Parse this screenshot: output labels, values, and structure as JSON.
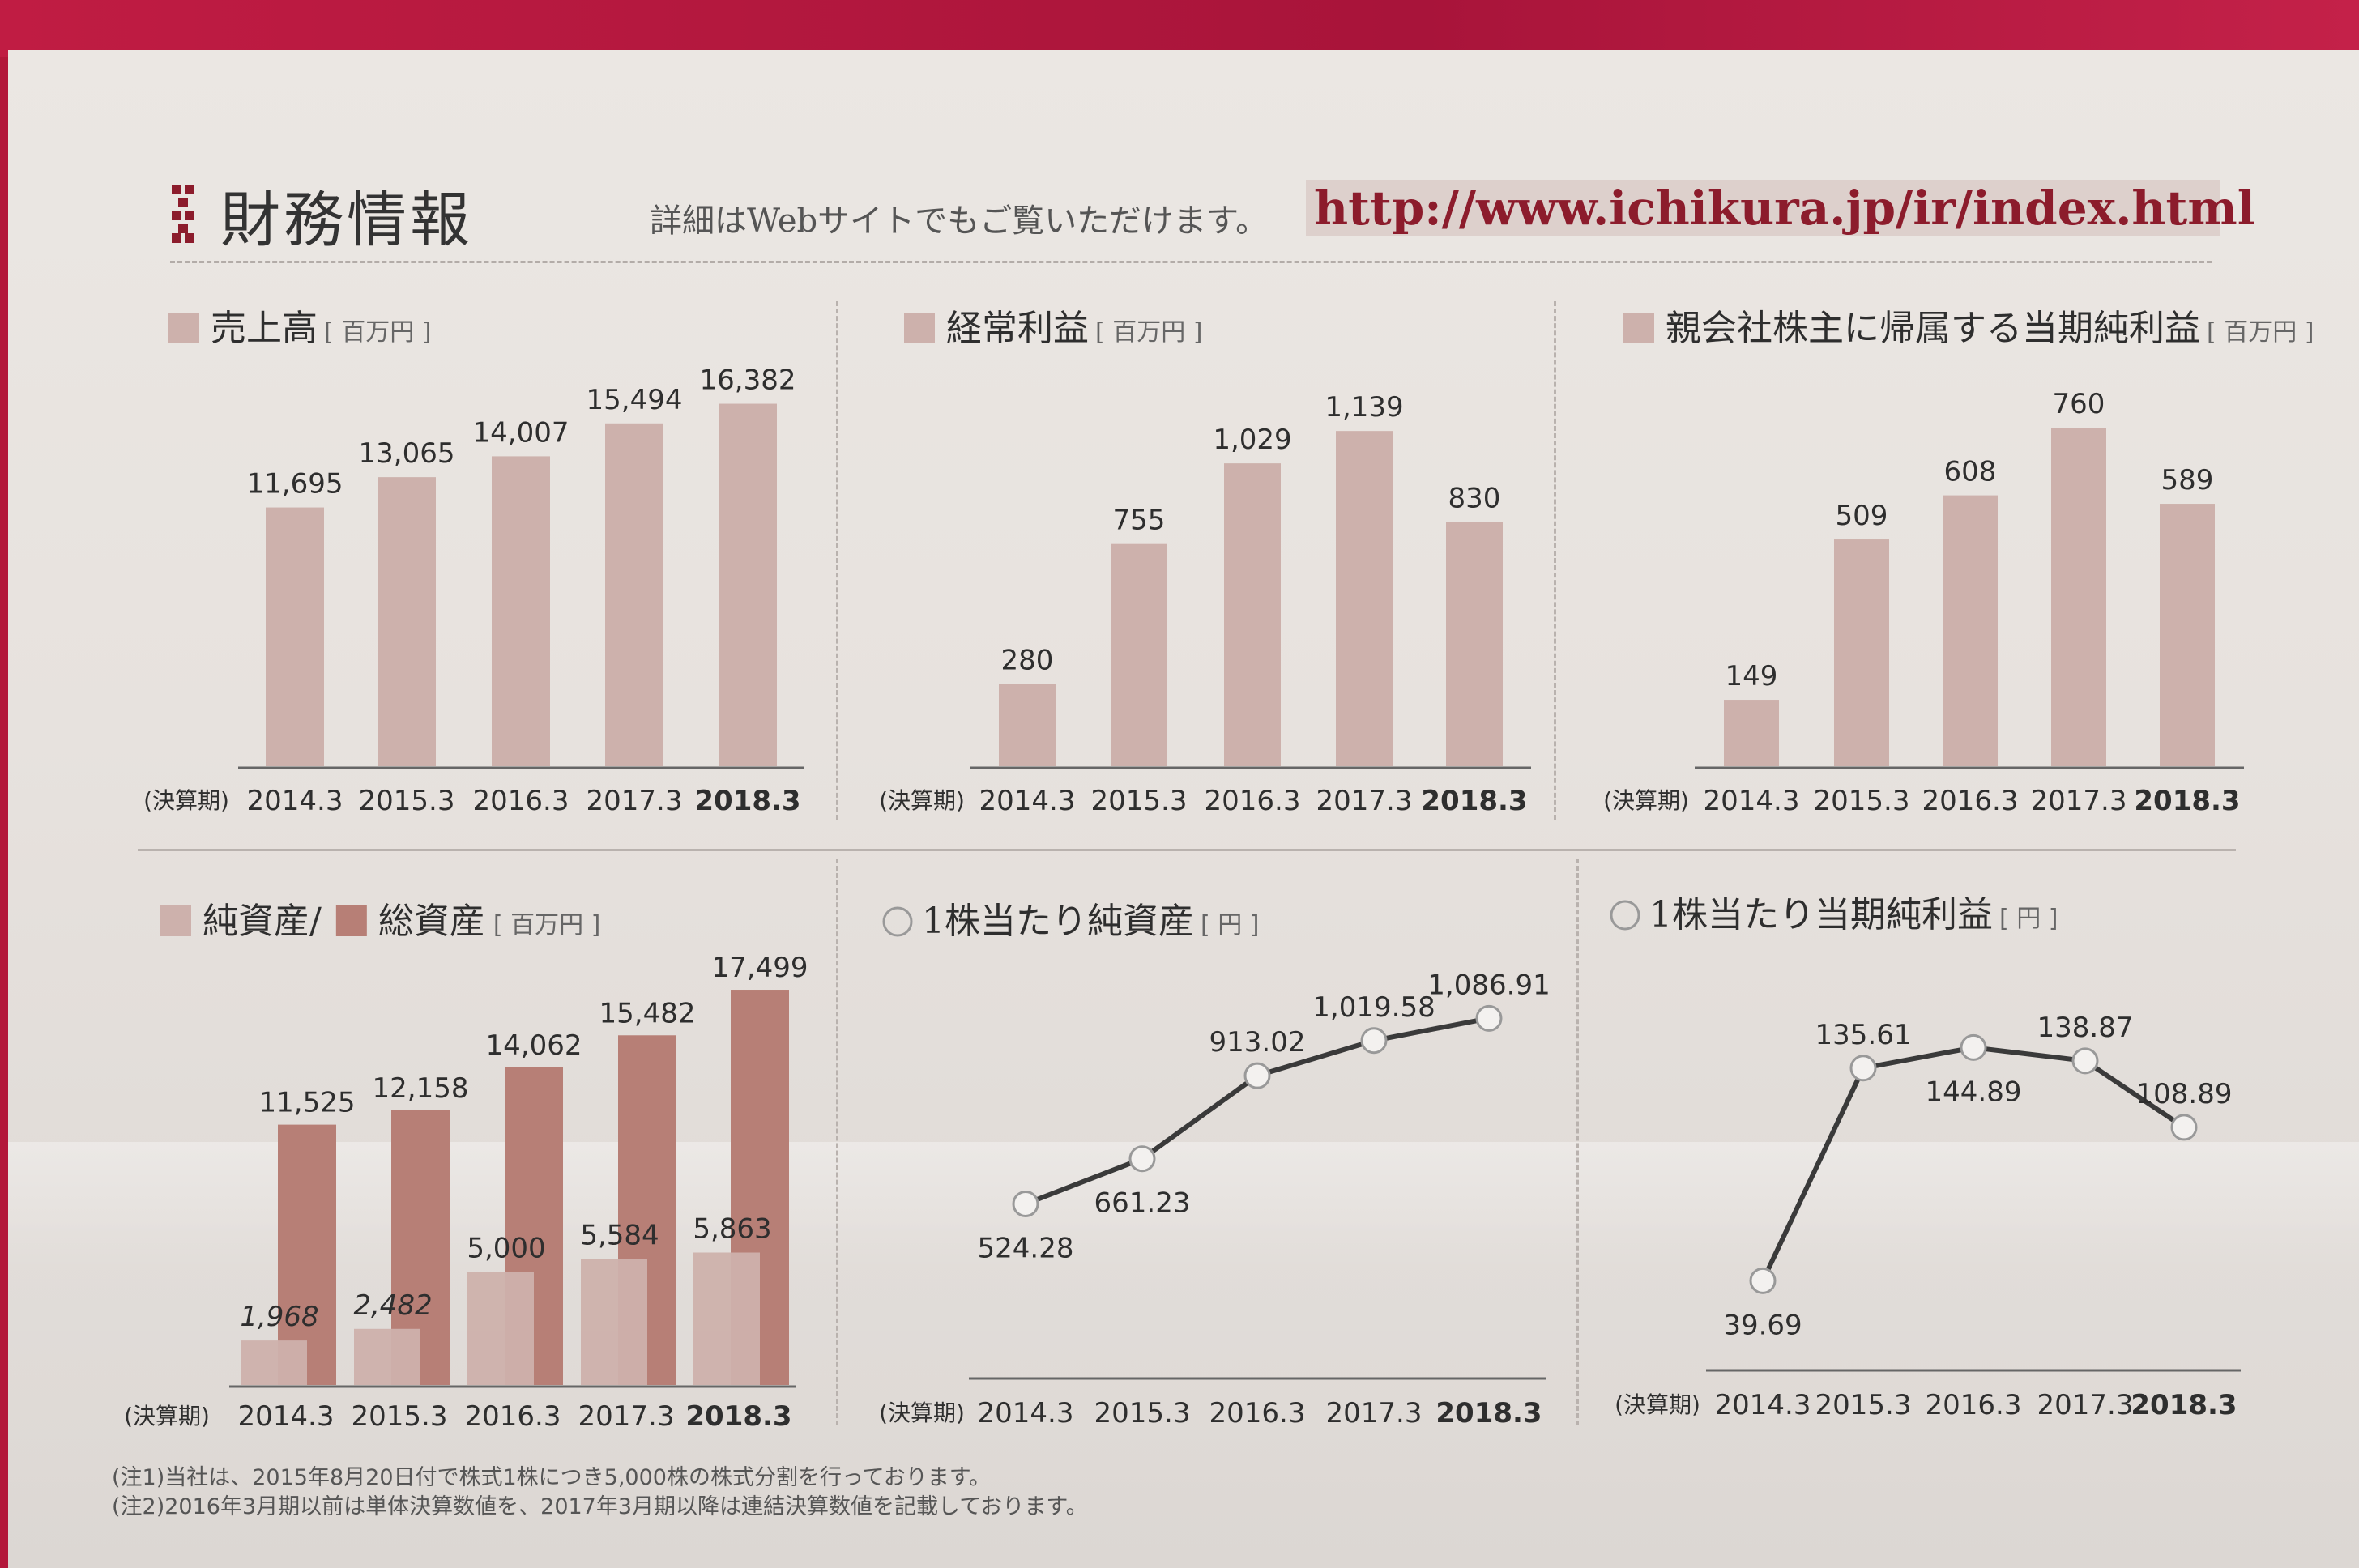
{
  "header": {
    "title": "財務情報",
    "subtitle": "詳細はWebサイトでもご覧いただけます。",
    "url": "http://www.ichikura.jp/ir/index.html"
  },
  "notes": [
    "(注1)当社は、2015年8月20日付で株式1株につき5,000株の株式分割を行っております。",
    "(注2)2016年3月期以前は単体決算数値を、2017年3月期以降は連結決算数値を記載しております。"
  ],
  "colors": {
    "bar_light": "#cdb1ac",
    "bar_dark": "#b77f76",
    "line": "#3a3a3a",
    "text": "#2e2e2e",
    "brand": "#8c1c2c"
  },
  "chart_data": [
    {
      "type": "bar",
      "title": "売上高",
      "unit": "百万円",
      "xlabel": "(決算期)",
      "categories": [
        "2014.3",
        "2015.3",
        "2016.3",
        "2017.3",
        "2018.3"
      ],
      "values": [
        11695,
        13065,
        14007,
        15494,
        16382
      ],
      "value_labels": [
        "11,695",
        "13,065",
        "14,007",
        "15,494",
        "16,382"
      ],
      "ylim": [
        0,
        17500
      ]
    },
    {
      "type": "bar",
      "title": "経常利益",
      "unit": "百万円",
      "xlabel": "(決算期)",
      "categories": [
        "2014.3",
        "2015.3",
        "2016.3",
        "2017.3",
        "2018.3"
      ],
      "values": [
        280,
        755,
        1029,
        1139,
        830
      ],
      "value_labels": [
        "280",
        "755",
        "1,029",
        "1,139",
        "830"
      ],
      "ylim": [
        0,
        1200
      ]
    },
    {
      "type": "bar",
      "title": "親会社株主に帰属する当期純利益",
      "unit": "百万円",
      "xlabel": "(決算期)",
      "categories": [
        "2014.3",
        "2015.3",
        "2016.3",
        "2017.3",
        "2018.3"
      ],
      "values": [
        149,
        509,
        608,
        760,
        589
      ],
      "value_labels": [
        "149",
        "509",
        "608",
        "760",
        "589"
      ],
      "ylim": [
        0,
        800
      ]
    },
    {
      "type": "bar",
      "title_parts": [
        "純資産",
        "総資産"
      ],
      "unit": "百万円",
      "xlabel": "(決算期)",
      "categories": [
        "2014.3",
        "2015.3",
        "2016.3",
        "2017.3",
        "2018.3"
      ],
      "series": [
        {
          "name": "純資産",
          "values": [
            1968,
            2482,
            5000,
            5584,
            5863
          ],
          "value_labels": [
            "1,968",
            "2,482",
            "5,000",
            "5,584",
            "5,863"
          ]
        },
        {
          "name": "総資産",
          "values": [
            11525,
            12158,
            14062,
            15482,
            17499
          ],
          "value_labels": [
            "11,525",
            "12,158",
            "14,062",
            "15,482",
            "17,499"
          ]
        }
      ],
      "ylim": [
        0,
        17500
      ]
    },
    {
      "type": "line",
      "title": "1株当たり純資産",
      "unit": "円",
      "xlabel": "(決算期)",
      "categories": [
        "2014.3",
        "2015.3",
        "2016.3",
        "2017.3",
        "2018.3"
      ],
      "values": [
        524.28,
        661.23,
        913.02,
        1019.58,
        1086.91
      ],
      "value_labels": [
        "524.28",
        "661.23",
        "913.02",
        "1,019.58",
        "1,086.91"
      ],
      "ylim": [
        0,
        1100
      ]
    },
    {
      "type": "line",
      "title": "1株当たり当期純利益",
      "unit": "円",
      "xlabel": "(決算期)",
      "categories": [
        "2014.3",
        "2015.3",
        "2016.3",
        "2017.3",
        "2018.3"
      ],
      "values": [
        39.69,
        135.61,
        144.89,
        138.87,
        108.89
      ],
      "value_labels": [
        "39.69",
        "135.61",
        "144.89",
        "138.87",
        "108.89"
      ],
      "ylim": [
        0,
        160
      ]
    }
  ]
}
